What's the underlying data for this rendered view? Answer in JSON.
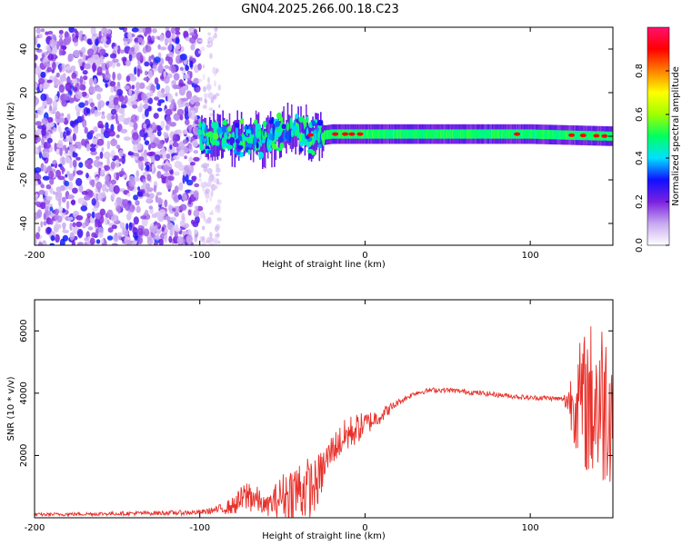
{
  "title": "GN04.2025.266.00.18.C23",
  "chart_data": [
    {
      "type": "heatmap",
      "name": "spectrogram",
      "xlabel": "Height of straight line (km)",
      "ylabel": "Frequency (Hz)",
      "xlim": [
        -200,
        150
      ],
      "ylim": [
        -50,
        50
      ],
      "xticks": [
        -200,
        -100,
        0,
        100
      ],
      "yticks": [
        -40,
        -20,
        0,
        20,
        40
      ],
      "colorbar": {
        "label": "Normalized spectral amplitude",
        "range": [
          0,
          1
        ],
        "ticks": [
          0.0,
          0.2,
          0.4,
          0.6,
          0.8
        ],
        "colors": [
          "#ffffff",
          "#c8a8f0",
          "#7a20e0",
          "#1010ff",
          "#00e0ff",
          "#00ff60",
          "#a0ff00",
          "#ffff00",
          "#ff8000",
          "#ff0000",
          "#ff1070"
        ]
      },
      "features": [
        {
          "description": "broadband noise",
          "x_range": [
            -200,
            -100
          ],
          "freq_range": [
            -50,
            50
          ],
          "amplitude": 0.15
        },
        {
          "description": "sparse noise",
          "x_range": [
            -100,
            -88
          ],
          "freq_range": [
            -50,
            50
          ],
          "amplitude": 0.05
        },
        {
          "description": "signal band",
          "x_range": [
            -100,
            150
          ],
          "center_freq": [
            [
              -100,
              0
            ],
            [
              -90,
              0
            ],
            [
              -80,
              -1
            ],
            [
              -70,
              0
            ],
            [
              -60,
              -2
            ],
            [
              -50,
              3
            ],
            [
              -40,
              2
            ],
            [
              -30,
              0
            ],
            [
              -20,
              1
            ],
            [
              -10,
              1
            ],
            [
              0,
              1
            ],
            [
              50,
              1
            ],
            [
              100,
              1
            ],
            [
              150,
              0
            ]
          ]
        },
        {
          "description": "peak amplitude spots",
          "x_values": [
            -33,
            -18,
            -12,
            -8,
            -3,
            92,
            125,
            132,
            140,
            145
          ],
          "amplitude": 0.9
        }
      ]
    },
    {
      "type": "line",
      "name": "snr",
      "xlabel": "Height of straight line (km)",
      "ylabel": "SNR (10 * v/v)",
      "xlim": [
        -200,
        150
      ],
      "ylim": [
        0,
        7000
      ],
      "xticks": [
        -200,
        -100,
        0,
        100
      ],
      "yticks": [
        2000,
        4000,
        6000
      ],
      "color": "#e8302a",
      "series": [
        {
          "name": "SNR",
          "envelope": {
            "x": [
              -200,
              -100,
              -90,
              -80,
              -70,
              -60,
              -50,
              -40,
              -30,
              -20,
              -10,
              0,
              10,
              20,
              30,
              40,
              50,
              60,
              70,
              80,
              90,
              100,
              110,
              120,
              130,
              140,
              150
            ],
            "mean": [
              100,
              170,
              250,
              380,
              750,
              350,
              700,
              900,
              1000,
              2200,
              2700,
              3000,
              3300,
              3700,
              4000,
              4100,
              4100,
              4050,
              4000,
              3950,
              3900,
              3850,
              3850,
              3800,
              3700,
              3700,
              3700
            ],
            "amplitude": [
              50,
              80,
              120,
              280,
              600,
              280,
              750,
              1100,
              900,
              500,
              600,
              400,
              250,
              100,
              80,
              80,
              80,
              80,
              80,
              80,
              80,
              80,
              80,
              80,
              2000,
              3000,
              2500
            ]
          }
        }
      ]
    }
  ]
}
